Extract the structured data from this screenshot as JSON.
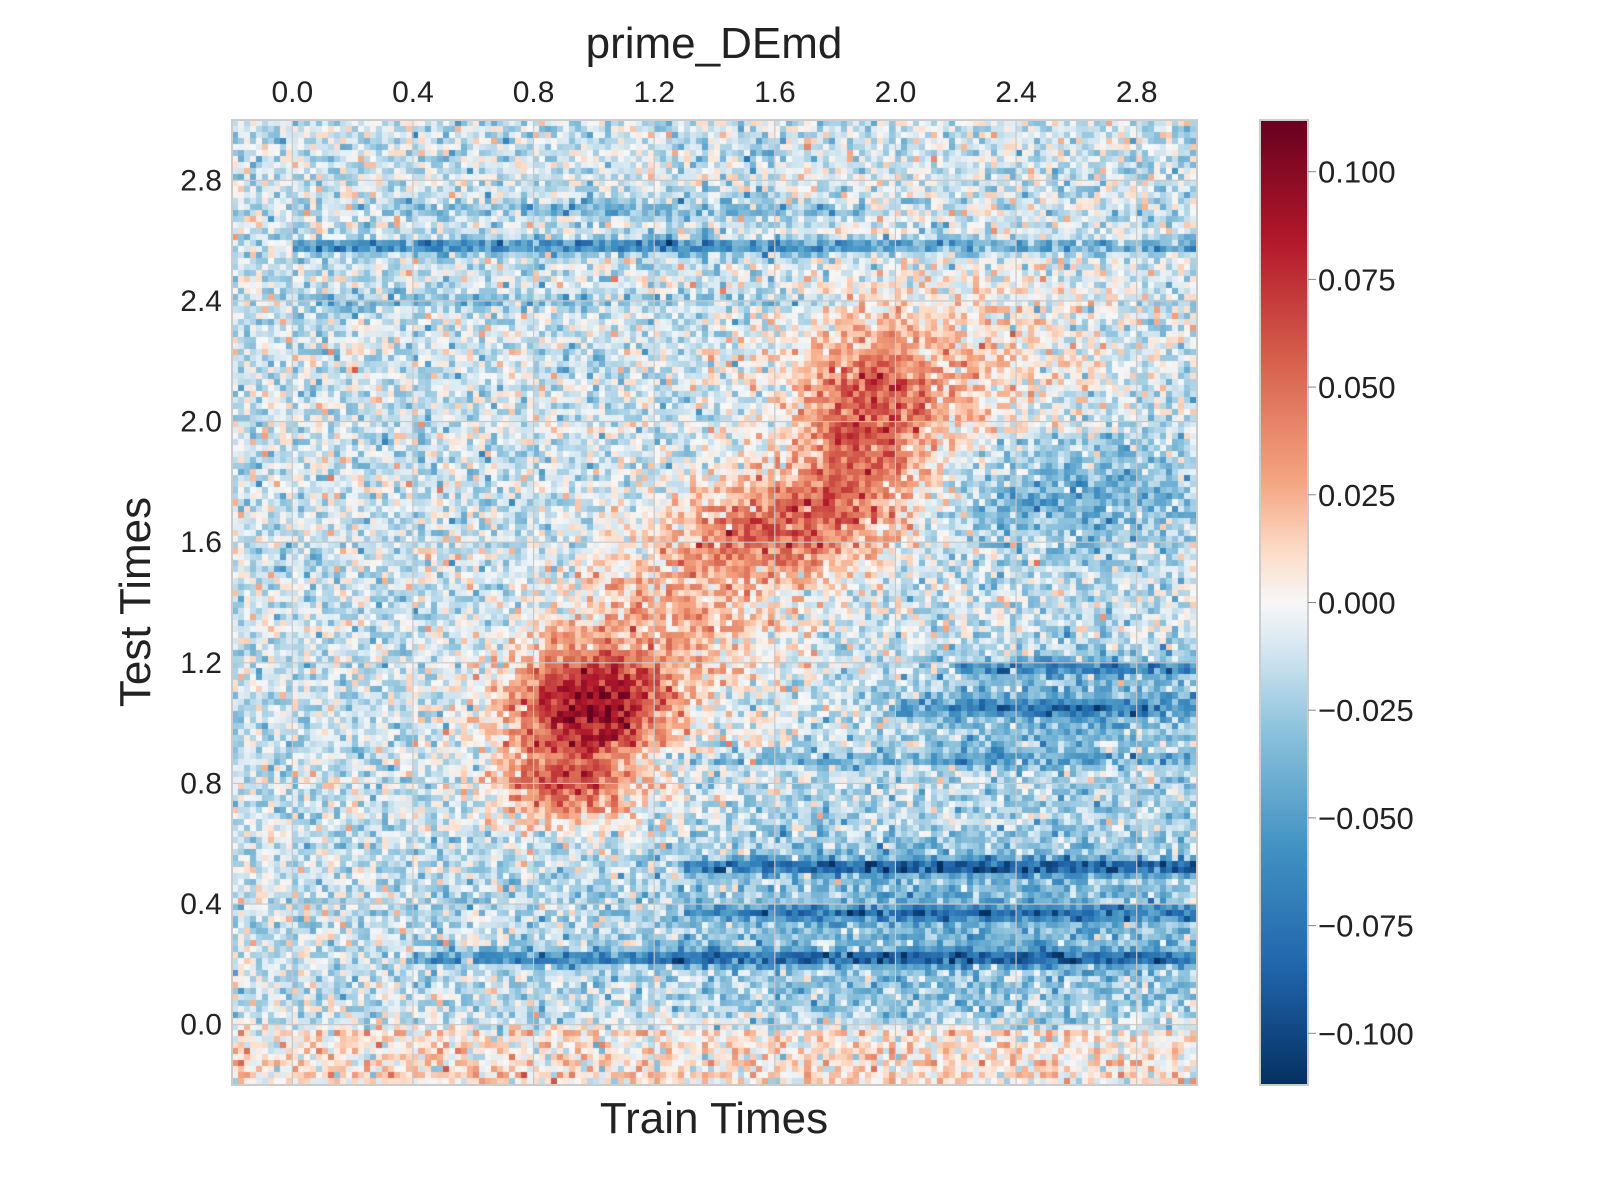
{
  "chart_data": {
    "type": "heatmap",
    "title": "prime_DEmd",
    "xlabel": "Train Times",
    "ylabel": "Test Times",
    "xlim": [
      -0.2,
      3.0
    ],
    "ylim": [
      -0.2,
      3.0
    ],
    "x_ticks": [
      "0.0",
      "0.4",
      "0.8",
      "1.2",
      "1.6",
      "2.0",
      "2.4",
      "2.8"
    ],
    "y_ticks": [
      "0.0",
      "0.4",
      "0.8",
      "1.2",
      "1.6",
      "2.0",
      "2.4",
      "2.8"
    ],
    "x_tick_position": "top",
    "grid": true,
    "colormap": "RdBu_r",
    "colorbar": {
      "vmin": -0.112,
      "vmax": 0.112,
      "ticks": [
        "0.100",
        "0.075",
        "0.050",
        "0.025",
        "0.000",
        "−0.025",
        "−0.050",
        "−0.075",
        "−0.100"
      ],
      "stops": [
        {
          "value": -0.112,
          "color": "#053061"
        },
        {
          "value": -0.084,
          "color": "#2166ac"
        },
        {
          "value": -0.056,
          "color": "#4393c3"
        },
        {
          "value": -0.028,
          "color": "#92c5de"
        },
        {
          "value": -0.012,
          "color": "#d1e5f0"
        },
        {
          "value": 0.0,
          "color": "#f7f7f7"
        },
        {
          "value": 0.012,
          "color": "#fddbc7"
        },
        {
          "value": 0.028,
          "color": "#f4a582"
        },
        {
          "value": 0.056,
          "color": "#d6604d"
        },
        {
          "value": 0.084,
          "color": "#b2182b"
        },
        {
          "value": 0.112,
          "color": "#67001f"
        }
      ]
    },
    "grid_resolution": 160,
    "features": {
      "diagonal_blobs": [
        {
          "x": 0.95,
          "y": 1.0,
          "sx": 0.18,
          "sy": 0.18,
          "value": 0.075
        },
        {
          "x": 1.05,
          "y": 1.08,
          "sx": 0.15,
          "sy": 0.1,
          "value": 0.04
        },
        {
          "x": 0.9,
          "y": 0.78,
          "sx": 0.16,
          "sy": 0.08,
          "value": 0.04
        },
        {
          "x": 1.3,
          "y": 1.35,
          "sx": 0.25,
          "sy": 0.22,
          "value": 0.035
        },
        {
          "x": 1.55,
          "y": 1.62,
          "sx": 0.2,
          "sy": 0.1,
          "value": 0.038
        },
        {
          "x": 1.75,
          "y": 1.7,
          "sx": 0.2,
          "sy": 0.12,
          "value": 0.035
        },
        {
          "x": 1.9,
          "y": 1.98,
          "sx": 0.14,
          "sy": 0.2,
          "value": 0.05
        },
        {
          "x": 2.0,
          "y": 2.1,
          "sx": 0.3,
          "sy": 0.2,
          "value": 0.022
        },
        {
          "x": 2.2,
          "y": 2.2,
          "sx": 0.35,
          "sy": 0.25,
          "value": 0.015
        }
      ],
      "horizontal_bands": [
        {
          "y": 2.58,
          "x_from": 0.0,
          "x_to": 3.0,
          "value": -0.055,
          "focus_x": 1.1,
          "spread": 0.9
        },
        {
          "y": 2.7,
          "x_from": 0.3,
          "x_to": 1.9,
          "value": -0.028,
          "focus_x": 1.1,
          "spread": 0.6
        },
        {
          "y": 2.4,
          "x_from": 0.0,
          "x_to": 1.8,
          "value": -0.02,
          "focus_x": 0.7,
          "spread": 0.7
        },
        {
          "y": 0.52,
          "x_from": 1.3,
          "x_to": 3.0,
          "value": -0.065,
          "focus_x": 2.4,
          "spread": 1.2
        },
        {
          "y": 0.37,
          "x_from": 1.3,
          "x_to": 3.0,
          "value": -0.045,
          "focus_x": 2.4,
          "spread": 1.2
        },
        {
          "y": 0.22,
          "x_from": 0.4,
          "x_to": 3.0,
          "value": -0.06,
          "focus_x": 2.2,
          "spread": 1.4
        },
        {
          "y": 1.18,
          "x_from": 2.2,
          "x_to": 3.0,
          "value": -0.045,
          "focus_x": 2.6,
          "spread": 0.6
        },
        {
          "y": 1.05,
          "x_from": 2.0,
          "x_to": 3.0,
          "value": -0.04,
          "focus_x": 2.5,
          "spread": 0.6
        },
        {
          "y": 0.88,
          "x_from": 0.6,
          "x_to": 3.0,
          "value": -0.025,
          "focus_x": 2.0,
          "spread": 1.0
        }
      ],
      "blue_regions": [
        {
          "x": 2.6,
          "y": 1.75,
          "sx": 0.3,
          "sy": 0.15,
          "value": -0.03
        },
        {
          "x": 2.55,
          "y": 1.05,
          "sx": 0.35,
          "sy": 0.12,
          "value": -0.03
        },
        {
          "x": 2.3,
          "y": 0.35,
          "sx": 0.9,
          "sy": 0.25,
          "value": -0.025
        }
      ],
      "pre_stimulus_pink_band": {
        "y_from": -0.2,
        "y_to": -0.02,
        "value": 0.012
      }
    }
  }
}
